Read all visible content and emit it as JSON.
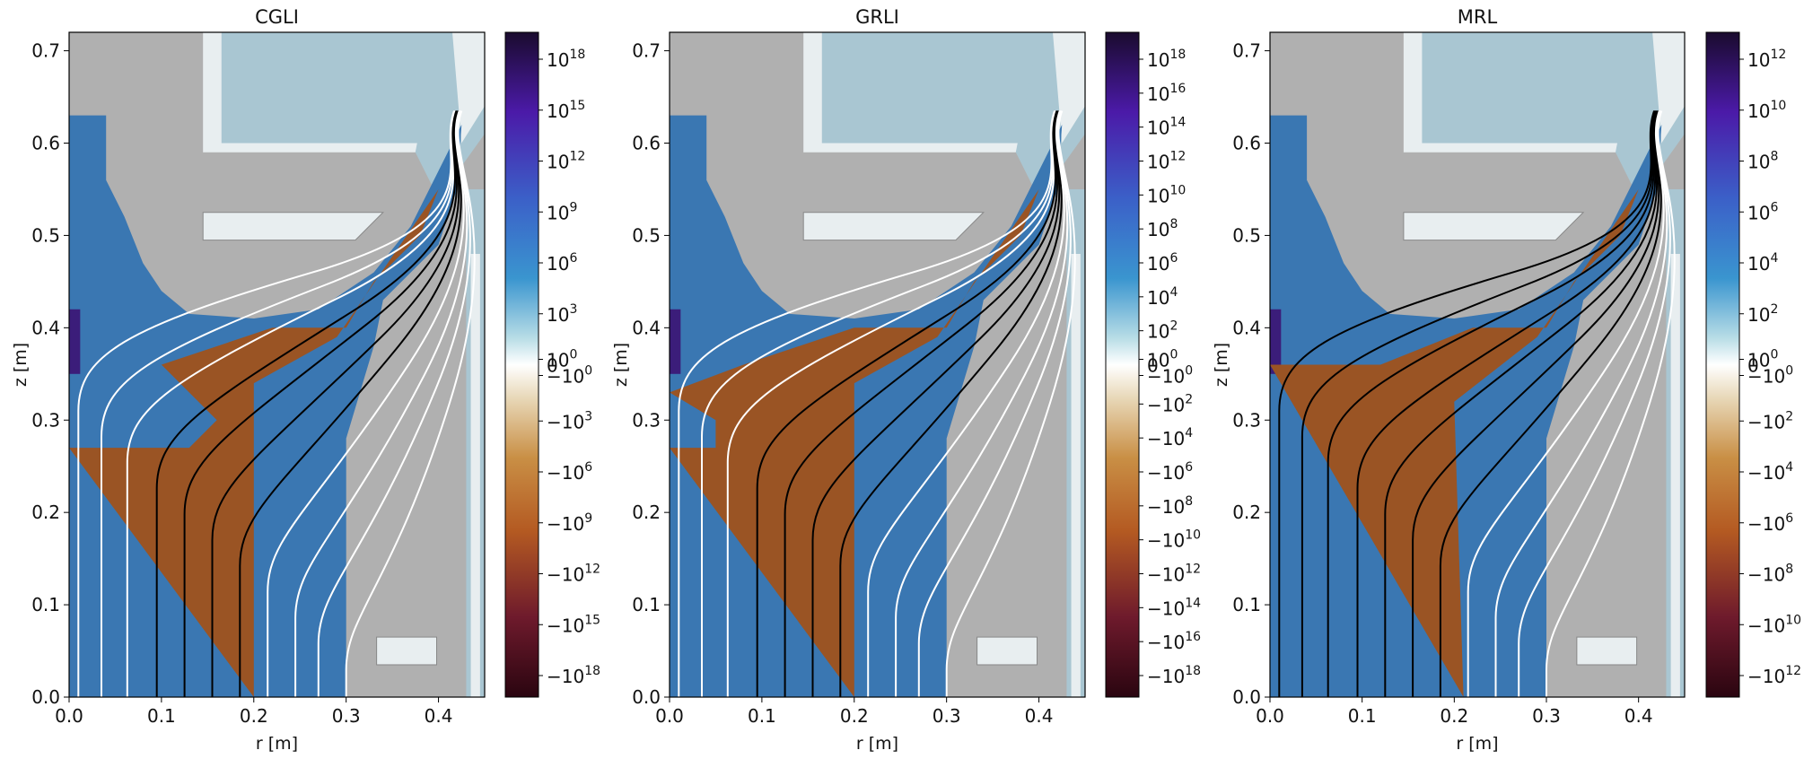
{
  "colors": {
    "background_gray": "#b0b0b0",
    "structure_light": "#e8eef0",
    "structure_blue": "#a9c6d2",
    "positive_blue": "#3a77b2",
    "negative_orange": "#9a5424",
    "lines_white": "#ffffff",
    "lines_black": "#000000"
  },
  "chart_data": [
    {
      "type": "heatmap",
      "title": "CGLI",
      "xlabel": "r [m]",
      "ylabel": "z [m]",
      "xlim": [
        0.0,
        0.45
      ],
      "ylim": [
        0.0,
        0.72
      ],
      "xticks": [
        "0.0",
        "0.1",
        "0.2",
        "0.3",
        "0.4"
      ],
      "yticks": [
        "0.0",
        "0.1",
        "0.2",
        "0.3",
        "0.4",
        "0.5",
        "0.6",
        "0.7"
      ],
      "colorscale": "symlog diverging (blue positive, orange negative)",
      "colorbar_ticks_positive": [
        "10^18",
        "10^15",
        "10^12",
        "10^9",
        "10^6",
        "10^3",
        "10^0"
      ],
      "colorbar_ticks_zero": "0",
      "colorbar_ticks_negative": [
        "−10^0",
        "−10^3",
        "−10^6",
        "−10^9",
        "−10^12",
        "−10^15",
        "−10^18"
      ],
      "negative_region_boundary": [
        [
          0.0,
          0.27
        ],
        [
          0.13,
          0.27
        ],
        [
          0.16,
          0.3
        ],
        [
          0.1,
          0.36
        ],
        [
          0.22,
          0.4
        ],
        [
          0.3,
          0.4
        ],
        [
          0.33,
          0.45
        ],
        [
          0.38,
          0.5
        ],
        [
          0.4,
          0.55
        ],
        [
          0.29,
          0.39
        ],
        [
          0.2,
          0.34
        ],
        [
          0.2,
          0.0
        ]
      ],
      "field_lines": [
        {
          "color": "white",
          "r_bottom": 0.01
        },
        {
          "color": "white",
          "r_bottom": 0.035
        },
        {
          "color": "white",
          "r_bottom": 0.063
        },
        {
          "color": "black",
          "r_bottom": 0.095
        },
        {
          "color": "black",
          "r_bottom": 0.125
        },
        {
          "color": "black",
          "r_bottom": 0.155
        },
        {
          "color": "black",
          "r_bottom": 0.185
        },
        {
          "color": "white",
          "r_bottom": 0.215
        },
        {
          "color": "white",
          "r_bottom": 0.245
        },
        {
          "color": "white",
          "r_bottom": 0.27
        },
        {
          "color": "white",
          "r_bottom": 0.3
        }
      ]
    },
    {
      "type": "heatmap",
      "title": "GRLI",
      "xlabel": "r [m]",
      "ylabel": "z [m]",
      "xlim": [
        0.0,
        0.45
      ],
      "ylim": [
        0.0,
        0.72
      ],
      "xticks": [
        "0.0",
        "0.1",
        "0.2",
        "0.3",
        "0.4"
      ],
      "yticks": [
        "0.0",
        "0.1",
        "0.2",
        "0.3",
        "0.4",
        "0.5",
        "0.6",
        "0.7"
      ],
      "colorscale": "symlog diverging (blue positive, orange negative)",
      "colorbar_ticks_positive": [
        "10^18",
        "10^16",
        "10^14",
        "10^12",
        "10^10",
        "10^8",
        "10^6",
        "10^4",
        "10^2",
        "10^0"
      ],
      "colorbar_ticks_zero": "0",
      "colorbar_ticks_negative": [
        "−10^0",
        "−10^2",
        "−10^4",
        "−10^6",
        "−10^8",
        "−10^10",
        "−10^12",
        "−10^14",
        "−10^16",
        "−10^18"
      ],
      "negative_region_boundary": [
        [
          0.0,
          0.27
        ],
        [
          0.05,
          0.27
        ],
        [
          0.05,
          0.3
        ],
        [
          0.0,
          0.33
        ],
        [
          0.08,
          0.36
        ],
        [
          0.2,
          0.4
        ],
        [
          0.3,
          0.4
        ],
        [
          0.33,
          0.45
        ],
        [
          0.38,
          0.5
        ],
        [
          0.4,
          0.55
        ],
        [
          0.29,
          0.39
        ],
        [
          0.2,
          0.34
        ],
        [
          0.2,
          0.0
        ]
      ],
      "field_lines": [
        {
          "color": "white",
          "r_bottom": 0.01
        },
        {
          "color": "white",
          "r_bottom": 0.035
        },
        {
          "color": "white",
          "r_bottom": 0.063
        },
        {
          "color": "black",
          "r_bottom": 0.095
        },
        {
          "color": "black",
          "r_bottom": 0.125
        },
        {
          "color": "black",
          "r_bottom": 0.155
        },
        {
          "color": "black",
          "r_bottom": 0.185
        },
        {
          "color": "white",
          "r_bottom": 0.215
        },
        {
          "color": "white",
          "r_bottom": 0.245
        },
        {
          "color": "white",
          "r_bottom": 0.27
        },
        {
          "color": "white",
          "r_bottom": 0.3
        }
      ]
    },
    {
      "type": "heatmap",
      "title": "MRL",
      "xlabel": "r [m]",
      "ylabel": "z [m]",
      "xlim": [
        0.0,
        0.45
      ],
      "ylim": [
        0.0,
        0.72
      ],
      "xticks": [
        "0.0",
        "0.1",
        "0.2",
        "0.3",
        "0.4"
      ],
      "yticks": [
        "0.0",
        "0.1",
        "0.2",
        "0.3",
        "0.4",
        "0.5",
        "0.6",
        "0.7"
      ],
      "colorscale": "symlog diverging (blue positive, orange negative)",
      "colorbar_ticks_positive": [
        "10^12",
        "10^10",
        "10^8",
        "10^6",
        "10^4",
        "10^2",
        "10^0"
      ],
      "colorbar_ticks_zero": "0",
      "colorbar_ticks_negative": [
        "−10^0",
        "−10^2",
        "−10^4",
        "−10^6",
        "−10^8",
        "−10^10",
        "−10^12"
      ],
      "negative_region_boundary": [
        [
          0.0,
          0.36
        ],
        [
          0.12,
          0.36
        ],
        [
          0.22,
          0.4
        ],
        [
          0.3,
          0.4
        ],
        [
          0.33,
          0.45
        ],
        [
          0.38,
          0.5
        ],
        [
          0.4,
          0.55
        ],
        [
          0.29,
          0.39
        ],
        [
          0.2,
          0.32
        ],
        [
          0.21,
          0.0
        ]
      ],
      "field_lines": [
        {
          "color": "black",
          "r_bottom": 0.01
        },
        {
          "color": "black",
          "r_bottom": 0.035
        },
        {
          "color": "black",
          "r_bottom": 0.063
        },
        {
          "color": "black",
          "r_bottom": 0.095
        },
        {
          "color": "black",
          "r_bottom": 0.125
        },
        {
          "color": "black",
          "r_bottom": 0.155
        },
        {
          "color": "black",
          "r_bottom": 0.185
        },
        {
          "color": "white",
          "r_bottom": 0.215
        },
        {
          "color": "white",
          "r_bottom": 0.245
        },
        {
          "color": "white",
          "r_bottom": 0.27
        },
        {
          "color": "white",
          "r_bottom": 0.3
        }
      ]
    }
  ]
}
